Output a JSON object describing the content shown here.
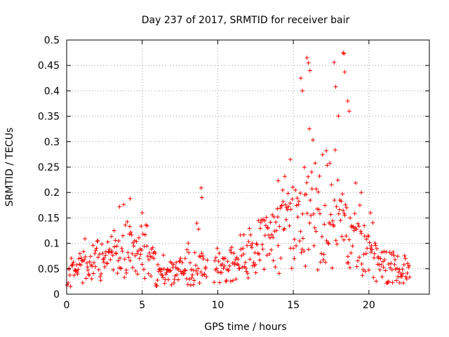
{
  "chart_data": {
    "type": "scatter",
    "title": "Day 237 of 2017, SRMTID for receiver bair",
    "xlabel": "GPS time / hours",
    "ylabel": "SRMTID / TECUs",
    "xlim": [
      0,
      24
    ],
    "ylim": [
      0,
      0.5
    ],
    "grid": true,
    "marker": "+",
    "color": "#ff0000",
    "x_ticks": [
      0,
      5,
      10,
      15,
      20
    ],
    "x_tick_labels": [
      "0",
      "5",
      "10",
      "15",
      "20"
    ],
    "y_ticks": [
      0,
      0.05,
      0.1,
      0.15,
      0.2,
      0.25,
      0.3,
      0.35,
      0.4,
      0.45,
      0.5
    ],
    "y_tick_labels": [
      "0",
      "0.05",
      "0.1",
      "0.15",
      "0.2",
      "0.25",
      "0.3",
      "0.35",
      "0.4",
      "0.45",
      "0.5"
    ],
    "envelope": {
      "hours": [
        0,
        0.5,
        1,
        1.5,
        2,
        2.5,
        3,
        3.5,
        4,
        4.5,
        5,
        5.5,
        6,
        6.5,
        7,
        7.5,
        8,
        8.5,
        9,
        9.5,
        10,
        10.5,
        11,
        11.5,
        12,
        12.5,
        13,
        13.5,
        14,
        14.5,
        15,
        15.5,
        16,
        16.5,
        17,
        17.5,
        18,
        18.5,
        19,
        19.5,
        20,
        20.5,
        21,
        21.5,
        22,
        22.5
      ],
      "median": [
        0.03,
        0.04,
        0.06,
        0.07,
        0.06,
        0.06,
        0.07,
        0.08,
        0.09,
        0.07,
        0.09,
        0.08,
        0.04,
        0.04,
        0.04,
        0.04,
        0.04,
        0.05,
        0.05,
        0.05,
        0.05,
        0.05,
        0.06,
        0.07,
        0.08,
        0.09,
        0.09,
        0.1,
        0.11,
        0.12,
        0.14,
        0.16,
        0.15,
        0.13,
        0.12,
        0.13,
        0.14,
        0.13,
        0.12,
        0.1,
        0.08,
        0.06,
        0.05,
        0.05,
        0.04,
        0.04
      ],
      "peak": [
        0.07,
        0.09,
        0.12,
        0.12,
        0.13,
        0.1,
        0.12,
        0.17,
        0.19,
        0.12,
        0.16,
        0.13,
        0.08,
        0.08,
        0.08,
        0.07,
        0.12,
        0.15,
        0.21,
        0.1,
        0.09,
        0.1,
        0.12,
        0.13,
        0.15,
        0.13,
        0.15,
        0.16,
        0.22,
        0.25,
        0.27,
        0.46,
        0.46,
        0.3,
        0.28,
        0.38,
        0.47,
        0.47,
        0.25,
        0.2,
        0.16,
        0.13,
        0.09,
        0.09,
        0.09,
        0.1
      ]
    },
    "highlighted_points": [
      {
        "x": 15.5,
        "y": 0.425
      },
      {
        "x": 15.6,
        "y": 0.4
      },
      {
        "x": 15.9,
        "y": 0.465
      },
      {
        "x": 16.0,
        "y": 0.455
      },
      {
        "x": 16.1,
        "y": 0.44
      },
      {
        "x": 17.7,
        "y": 0.456
      },
      {
        "x": 17.8,
        "y": 0.408
      },
      {
        "x": 18.3,
        "y": 0.475
      },
      {
        "x": 18.35,
        "y": 0.473
      },
      {
        "x": 18.4,
        "y": 0.437
      },
      {
        "x": 18.6,
        "y": 0.38
      },
      {
        "x": 18.7,
        "y": 0.36
      },
      {
        "x": 8.9,
        "y": 0.209
      },
      {
        "x": 8.95,
        "y": 0.19
      },
      {
        "x": 4.2,
        "y": 0.188
      },
      {
        "x": 3.5,
        "y": 0.172
      },
      {
        "x": 5.0,
        "y": 0.16
      },
      {
        "x": 14.0,
        "y": 0.223
      },
      {
        "x": 14.8,
        "y": 0.265
      },
      {
        "x": 19.5,
        "y": 0.2
      },
      {
        "x": 20.1,
        "y": 0.16
      }
    ]
  }
}
